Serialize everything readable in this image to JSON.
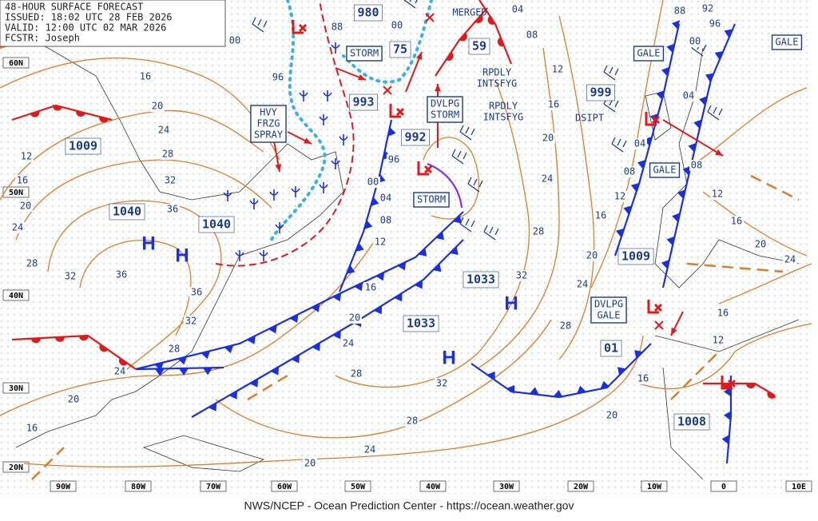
{
  "header": {
    "lines": [
      "48-HOUR SURFACE FORECAST",
      "ISSUED: 18:02 UTC 28 FEB 2026",
      "VALID: 12:00 UTC 02 MAR 2026",
      "FCSTR: Joseph"
    ]
  },
  "footer": "NWS/NCEP - Ocean Prediction Center - https://ocean.weather.gov",
  "lat_labels": [
    "60N",
    "50N",
    "40N",
    "30N",
    "20N"
  ],
  "lon_labels": [
    "90W",
    "80W",
    "70W",
    "60W",
    "50W",
    "40W",
    "30W",
    "20W",
    "10W",
    "0",
    "10E"
  ],
  "warning_boxes": [
    {
      "lines": [
        "HVY",
        "FRZG",
        "SPRAY"
      ]
    },
    {
      "lines": [
        "STORM"
      ]
    },
    {
      "lines": [
        "DVLPG",
        "STORM"
      ]
    },
    {
      "lines": [
        "STORM"
      ]
    },
    {
      "lines": [
        "GALE"
      ]
    },
    {
      "lines": [
        "GALE"
      ]
    },
    {
      "lines": [
        "GALE"
      ]
    },
    {
      "lines": [
        "DVLPG",
        "GALE"
      ]
    }
  ],
  "notes": [
    {
      "lines": [
        "MERGED"
      ]
    },
    {
      "lines": [
        "RPDLY",
        "INTSFYG"
      ]
    },
    {
      "lines": [
        "RPDLY",
        "INTSFYG"
      ]
    },
    {
      "lines": [
        "DSIPT"
      ]
    }
  ],
  "pressure_centers": [
    "980",
    "75",
    "59",
    "993",
    "992",
    "999",
    "1009",
    "1040",
    "1040",
    "1033",
    "1033",
    "1009",
    "01",
    "1008"
  ],
  "highs": [
    "H",
    "H",
    "H",
    "H"
  ],
  "isobar_labels": [
    "16",
    "20",
    "24",
    "28",
    "32",
    "36",
    "12",
    "16",
    "20",
    "24",
    "28",
    "32",
    "36",
    "36",
    "32",
    "28",
    "24",
    "20",
    "16",
    "20",
    "24",
    "28",
    "32",
    "28",
    "24",
    "20",
    "16",
    "12",
    "08",
    "04",
    "00",
    "96",
    "96",
    "88",
    "00",
    "04",
    "08",
    "12",
    "16",
    "20",
    "24",
    "28",
    "32",
    "28",
    "24",
    "20",
    "16",
    "12",
    "08",
    "04",
    "04",
    "00",
    "96",
    "92",
    "88",
    "08",
    "12",
    "16",
    "20",
    "24",
    "16",
    "12",
    "16",
    "20",
    "00"
  ]
}
